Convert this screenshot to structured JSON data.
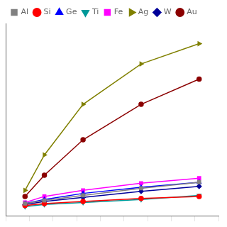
{
  "chart_data": {
    "type": "line",
    "x": [
      100,
      200,
      400,
      700,
      1000
    ],
    "series": [
      {
        "name": "Al",
        "color": "#808080",
        "marker": "square",
        "values": [
          0.07,
          0.1,
          0.15,
          0.22,
          0.28
        ]
      },
      {
        "name": "Si",
        "color": "#ff0000",
        "marker": "circle",
        "values": [
          0.05,
          0.07,
          0.09,
          0.12,
          0.14
        ]
      },
      {
        "name": "Ge",
        "color": "#0000ff",
        "marker": "triangle-up",
        "values": [
          0.07,
          0.11,
          0.17,
          0.23,
          0.28
        ]
      },
      {
        "name": "Ti",
        "color": "#009999",
        "marker": "triangle-down",
        "values": [
          0.04,
          0.06,
          0.08,
          0.11,
          0.15
        ]
      },
      {
        "name": "Fe",
        "color": "#ff00ff",
        "marker": "square",
        "values": [
          0.08,
          0.14,
          0.2,
          0.27,
          0.32
        ]
      },
      {
        "name": "Ag",
        "color": "#808000",
        "marker": "triangle-right",
        "values": [
          0.2,
          0.55,
          1.05,
          1.45,
          1.65
        ]
      },
      {
        "name": "W",
        "color": "#000099",
        "marker": "diamond",
        "values": [
          0.06,
          0.09,
          0.13,
          0.19,
          0.24
        ]
      },
      {
        "name": "Au",
        "color": "#8b0000",
        "marker": "circle",
        "values": [
          0.14,
          0.35,
          0.7,
          1.05,
          1.3
        ]
      }
    ],
    "xlim": [
      0,
      1100
    ],
    "xticks": [
      0,
      122.22222222222223,
      244.44444444444446,
      366.6666666666667,
      488.8888888888889,
      611.1111111111111,
      733.3333333333334,
      855.5555555555555,
      977.7777777777778,
      1100
    ],
    "ylim": [
      -0.05,
      1.85
    ],
    "tick_labels": false,
    "grid": false,
    "legend": "upper left",
    "line_style": "solid"
  }
}
